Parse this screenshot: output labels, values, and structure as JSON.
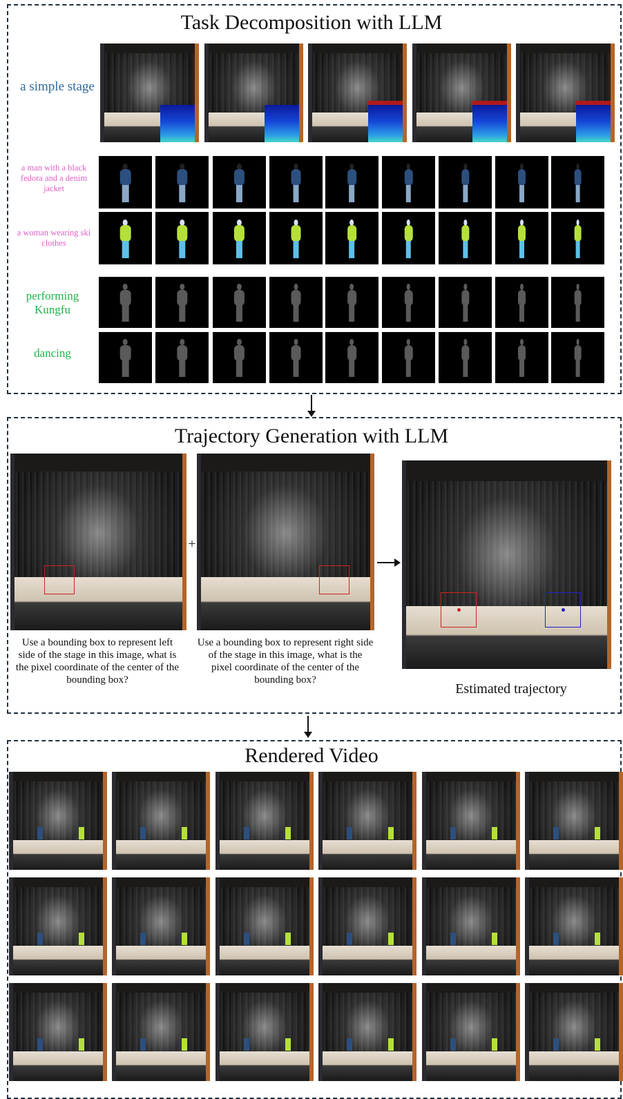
{
  "panel1": {
    "title": "Task Decomposition with LLM",
    "scene_label": "a simple stage",
    "character1_label": "a man with a black fedora and a denim jacket",
    "character2_label": "a woman wearing ski clothes",
    "motion1_label": "performing Kungfu",
    "motion2_label": "dancing"
  },
  "panel2": {
    "title": "Trajectory Generation with LLM",
    "plus": "+",
    "prompt_left": "Use a bounding box to represent left side of the stage in this image, what is the pixel coordinate of the center of the bounding box?",
    "prompt_right": "Use a bounding box to represent  right side of the stage in this image, what is the pixel coordinate of the center of the bounding box?",
    "result_label": "Estimated trajectory"
  },
  "panel3": {
    "title": "Rendered Video"
  },
  "colors": {
    "scene": "#2e6b9e",
    "character": "#e060c8",
    "motion": "#1eb34a",
    "left_box": "#d42020",
    "right_box": "#2020c8"
  }
}
